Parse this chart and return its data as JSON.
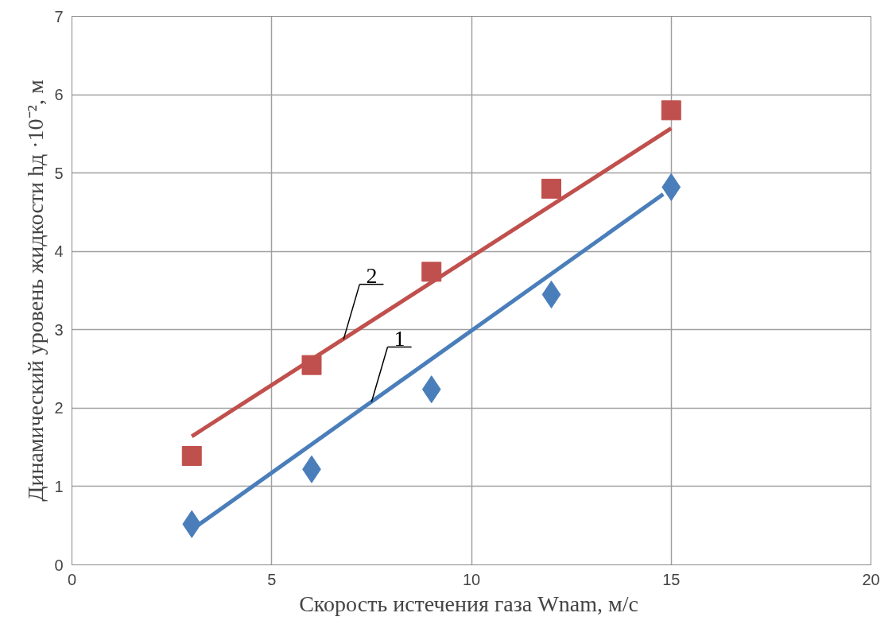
{
  "chart_data": {
    "type": "scatter",
    "xlabel": "Скорость истечения газа Wnam,  м/с",
    "ylabel": "Динамический уровень жидкости hд ·10⁻², м",
    "xlim": [
      0,
      20
    ],
    "xticks": [
      0,
      5,
      10,
      15,
      20
    ],
    "ylim": [
      0,
      7
    ],
    "yticks": [
      0,
      1,
      2,
      3,
      4,
      5,
      6,
      7
    ],
    "grid": true,
    "series": [
      {
        "marker": "diamond",
        "color": "#4a7ebb",
        "x": [
          3,
          6,
          9,
          12,
          15
        ],
        "values": [
          0.52,
          1.22,
          2.24,
          3.45,
          4.82
        ]
      },
      {
        "marker": "square",
        "color": "#c0504d",
        "x": [
          3,
          6,
          9,
          12,
          15
        ],
        "values": [
          1.39,
          2.55,
          3.74,
          4.8,
          5.8
        ]
      },
      {
        "type": "line",
        "color": "#4a7ebb",
        "x": [
          3,
          14.8
        ],
        "values": [
          0.45,
          4.73
        ]
      },
      {
        "type": "line",
        "color": "#c0504d",
        "x": [
          3,
          15
        ],
        "values": [
          1.64,
          5.57
        ]
      }
    ],
    "annotations": [
      {
        "text": "2",
        "x": 6.8,
        "y": 2.88
      },
      {
        "text": "1",
        "x": 7.5,
        "y": 2.08
      }
    ]
  }
}
